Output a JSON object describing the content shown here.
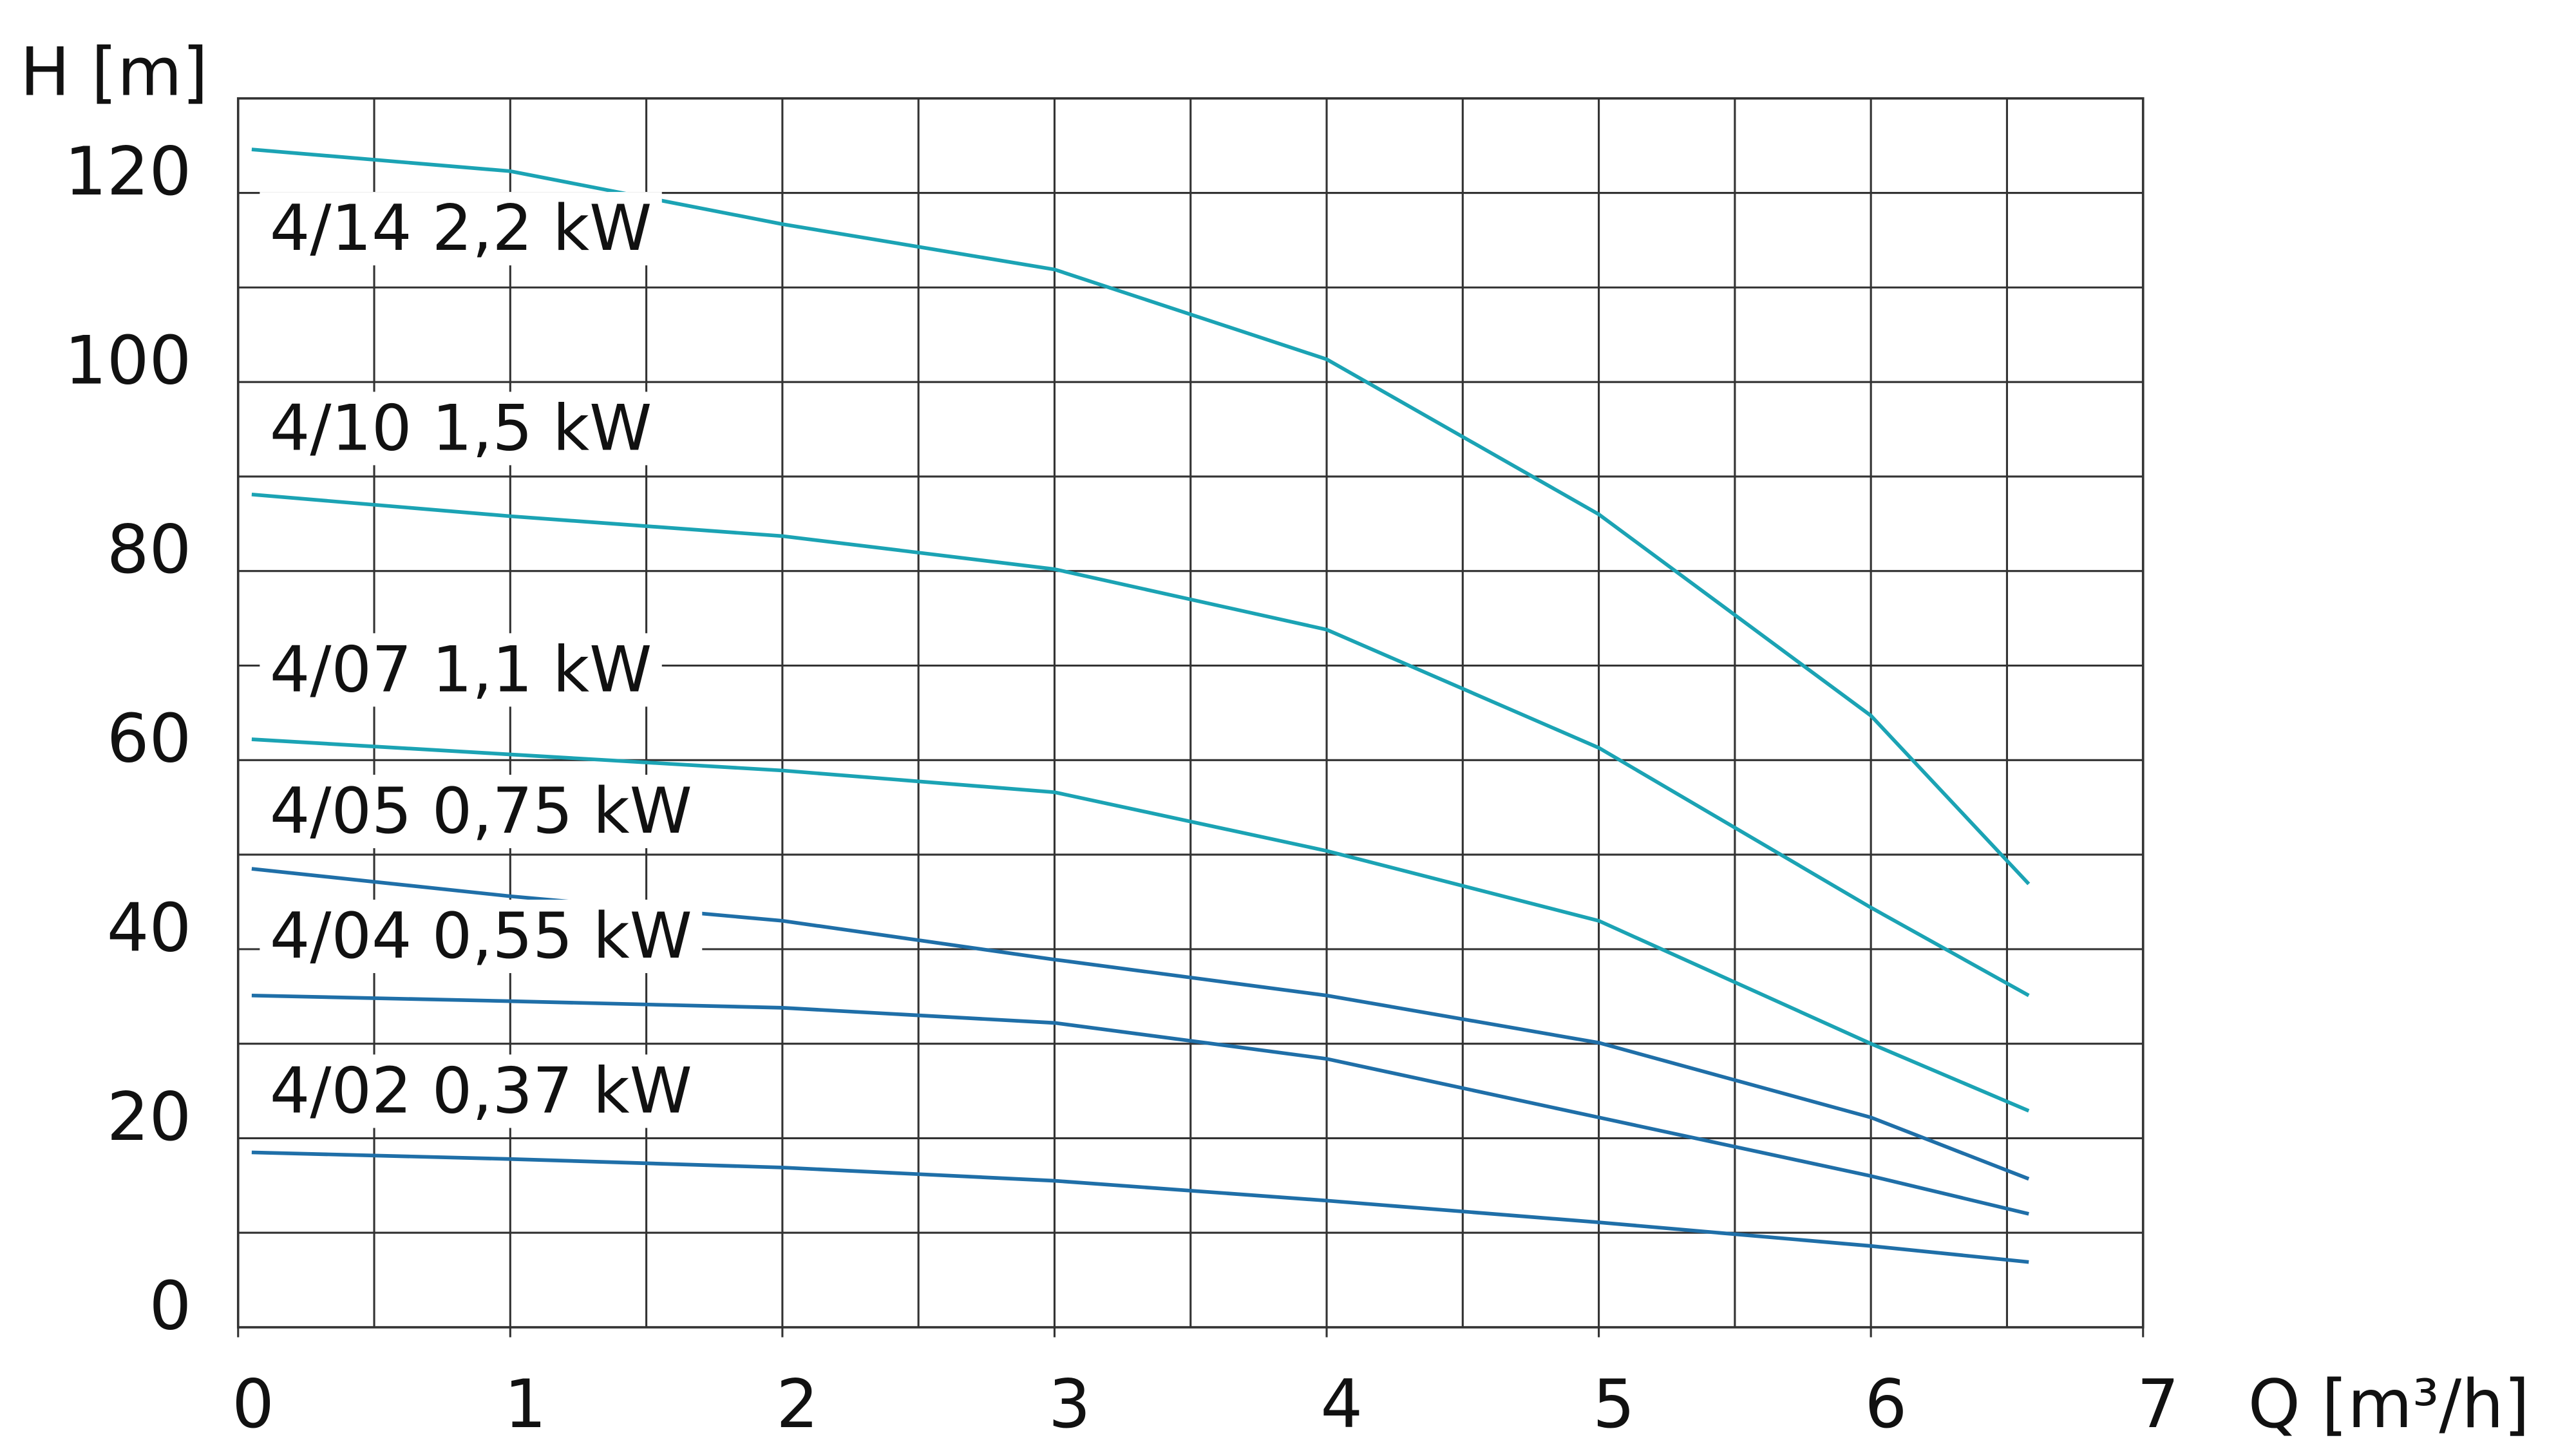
{
  "chart_data": {
    "type": "line",
    "y_label": "H [m]",
    "x_label": "Q [m³/h]",
    "x": [
      0.05,
      1,
      2,
      3,
      4,
      5,
      6,
      6.58
    ],
    "xlim": [
      0,
      7
    ],
    "xticks": [
      0,
      1,
      2,
      3,
      4,
      5,
      6,
      7
    ],
    "xminorticks": [
      0.5,
      1.5,
      2.5,
      3.5,
      4.5,
      5.5,
      6.5
    ],
    "ylim": [
      0,
      130
    ],
    "yticks": [
      0,
      20,
      40,
      60,
      80,
      100,
      120
    ],
    "yminorticks": [
      10,
      30,
      50,
      70,
      90,
      110,
      130
    ],
    "grid": true,
    "series": [
      {
        "name": "4/14 2,2 kW",
        "color": "#1ba3b4",
        "values": [
          124.6,
          122.3,
          116.7,
          111.9,
          102.4,
          86.0,
          64.7,
          46.9
        ]
      },
      {
        "name": "4/10 1,5 kW",
        "color": "#1ba3b4",
        "values": [
          88.1,
          85.8,
          83.7,
          80.2,
          73.8,
          61.3,
          44.4,
          35.1
        ]
      },
      {
        "name": "4/07 1,1 kW",
        "color": "#1ba3b4",
        "values": [
          62.2,
          60.6,
          58.9,
          56.6,
          50.4,
          43.0,
          30.0,
          22.9
        ]
      },
      {
        "name": "4/05 0,75 kW",
        "color": "#1f6fa8",
        "values": [
          48.5,
          45.6,
          43.0,
          38.9,
          35.1,
          30.1,
          22.2,
          15.7
        ]
      },
      {
        "name": "4/04 0,55 kW",
        "color": "#1f6fa8",
        "values": [
          35.1,
          34.5,
          33.8,
          32.2,
          28.4,
          22.2,
          16.0,
          12.0
        ]
      },
      {
        "name": "4/02 0,37 kW",
        "color": "#1f6fa8",
        "values": [
          18.5,
          17.8,
          16.9,
          15.5,
          13.4,
          11.1,
          8.6,
          6.9
        ]
      }
    ]
  }
}
